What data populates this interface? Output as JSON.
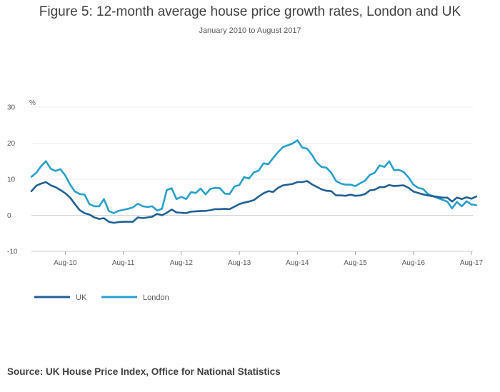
{
  "chart_data": {
    "type": "line",
    "title": "Figure 5: 12-month average house price growth rates, London and UK",
    "subtitle": "January 2010 to August 2017",
    "ylabel": "%",
    "ylim": [
      -10,
      30
    ],
    "yticks": [
      30,
      20,
      10,
      0,
      -10
    ],
    "xticks": [
      "Aug-10",
      "Aug-11",
      "Aug-12",
      "Aug-13",
      "Aug-14",
      "Aug-15",
      "Aug-16",
      "Aug-17"
    ],
    "x_start": "Jan-10",
    "x_end": "Aug-17",
    "grid": true,
    "legend_position": "bottom-left",
    "series": [
      {
        "name": "UK",
        "color": "#206095",
        "values": [
          6.7,
          8.2,
          8.8,
          9.2,
          8.3,
          7.8,
          7.0,
          6.1,
          4.9,
          3.1,
          1.4,
          0.6,
          0.2,
          -0.6,
          -1.0,
          -0.8,
          -1.8,
          -2.1,
          -1.9,
          -1.8,
          -1.8,
          -1.8,
          -0.6,
          -0.8,
          -0.6,
          -0.4,
          0.4,
          0.0,
          0.7,
          1.6,
          0.8,
          0.7,
          0.6,
          1.0,
          1.1,
          1.2,
          1.2,
          1.4,
          1.7,
          1.7,
          1.8,
          1.7,
          2.4,
          3.1,
          3.5,
          3.8,
          4.2,
          5.2,
          6.1,
          6.7,
          6.5,
          7.6,
          8.3,
          8.5,
          8.7,
          9.2,
          9.2,
          9.5,
          8.6,
          7.9,
          7.2,
          6.8,
          6.7,
          5.5,
          5.5,
          5.4,
          5.7,
          5.4,
          5.5,
          5.9,
          6.9,
          7.1,
          7.8,
          7.8,
          8.4,
          8.1,
          8.2,
          8.3,
          7.6,
          6.6,
          6.2,
          5.8,
          5.5,
          5.3,
          5.1,
          4.9,
          4.9,
          3.8,
          4.9,
          4.5,
          5.0,
          4.6,
          5.2
        ]
      },
      {
        "name": "London",
        "color": "#27a0cc",
        "values": [
          10.7,
          11.8,
          13.6,
          15.0,
          12.9,
          12.3,
          12.8,
          11.0,
          8.5,
          6.6,
          5.9,
          5.7,
          3.1,
          2.5,
          2.5,
          4.5,
          1.2,
          0.6,
          1.2,
          1.5,
          1.8,
          2.2,
          3.2,
          2.5,
          2.3,
          2.5,
          1.3,
          1.8,
          7.0,
          7.5,
          4.5,
          5.1,
          4.5,
          6.4,
          6.2,
          7.4,
          5.8,
          7.3,
          7.6,
          7.5,
          6.0,
          5.9,
          8.0,
          8.4,
          10.6,
          10.2,
          11.9,
          12.4,
          14.4,
          14.2,
          15.9,
          17.5,
          18.9,
          19.4,
          19.9,
          20.8,
          18.8,
          18.5,
          16.8,
          14.6,
          13.4,
          13.2,
          11.8,
          9.5,
          8.8,
          8.5,
          8.5,
          8.1,
          8.9,
          9.6,
          11.2,
          11.8,
          13.8,
          13.4,
          15.0,
          12.5,
          12.6,
          12.0,
          10.5,
          8.5,
          7.6,
          7.3,
          5.9,
          5.3,
          4.8,
          4.3,
          3.8,
          1.9,
          3.7,
          2.5,
          3.9,
          3.0,
          2.8
        ]
      }
    ],
    "source": "Source: UK House Price Index, Office for National Statistics"
  }
}
